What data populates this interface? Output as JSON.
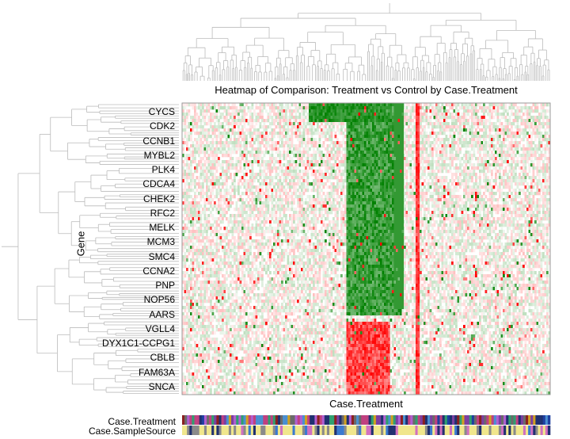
{
  "chart_data": {
    "type": "heatmap",
    "title": "Heatmap of Comparison: Treatment vs Control by Case.Treatment",
    "xlabel": "Case.Treatment",
    "ylabel": "Gene",
    "row_labels": [
      "CYCS",
      "CDK2",
      "CCNB1",
      "MYBL2",
      "PLK4",
      "CDCA4",
      "CHEK2",
      "RFC2",
      "MELK",
      "MCM3",
      "SMC4",
      "CCNA2",
      "PNP",
      "NOP56",
      "AARS",
      "VGLL4",
      "DYX1C1-CCPG1",
      "CBLB",
      "FAM63A",
      "SNCA"
    ],
    "color_scale": {
      "low": "#008000",
      "mid": "#ffffff",
      "high": "#ff0000"
    },
    "annotation_tracks": [
      "Case.Treatment",
      "Case.SampleSource"
    ],
    "column_dendrogram": true,
    "row_dendrogram": true
  }
}
